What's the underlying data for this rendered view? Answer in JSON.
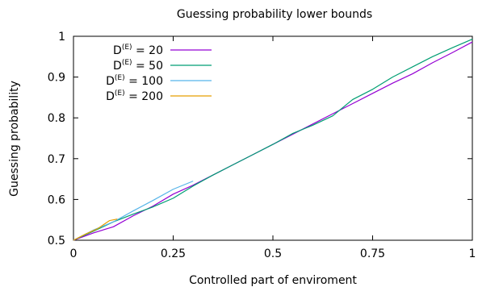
{
  "chart_data": {
    "type": "line",
    "title": "Guessing probability lower bounds",
    "xlabel": "Controlled part of enviroment",
    "ylabel": "Guessing probability",
    "xlim": [
      0,
      1
    ],
    "ylim": [
      0.5,
      1
    ],
    "xticks": [
      0,
      0.25,
      0.5,
      0.75,
      1
    ],
    "xtick_labels": [
      "0",
      "0.25",
      "0.5",
      "0.75",
      "1"
    ],
    "yticks": [
      0.5,
      0.6,
      0.7,
      0.8,
      0.9,
      1
    ],
    "ytick_labels": [
      "0.5",
      "0.6",
      "0.7",
      "0.8",
      "0.9",
      "1"
    ],
    "grid": false,
    "legend_position": "top-left",
    "series": [
      {
        "name": "D(E) = 20",
        "label_base": "D",
        "label_sup": "(E)",
        "label_rest": " = 20",
        "color": "#9400d3",
        "x": [
          0,
          0.05,
          0.1,
          0.15,
          0.2,
          0.25,
          0.3,
          0.35,
          0.4,
          0.45,
          0.5,
          0.55,
          0.6,
          0.65,
          0.7,
          0.75,
          0.8,
          0.85,
          0.9,
          0.95,
          1.0
        ],
        "y": [
          0.5,
          0.518,
          0.533,
          0.56,
          0.584,
          0.613,
          0.635,
          0.66,
          0.685,
          0.71,
          0.735,
          0.76,
          0.785,
          0.81,
          0.835,
          0.86,
          0.885,
          0.908,
          0.935,
          0.96,
          0.986
        ]
      },
      {
        "name": "D(E) = 50",
        "label_base": "D",
        "label_sup": "(E)",
        "label_rest": " = 50",
        "color": "#009e73",
        "x": [
          0,
          0.05,
          0.1,
          0.15,
          0.2,
          0.25,
          0.3,
          0.35,
          0.4,
          0.45,
          0.5,
          0.55,
          0.6,
          0.65,
          0.7,
          0.75,
          0.8,
          0.85,
          0.9,
          0.95,
          1.0
        ],
        "y": [
          0.5,
          0.522,
          0.545,
          0.564,
          0.582,
          0.603,
          0.633,
          0.66,
          0.685,
          0.71,
          0.735,
          0.762,
          0.782,
          0.805,
          0.845,
          0.87,
          0.9,
          0.925,
          0.95,
          0.972,
          0.993
        ]
      },
      {
        "name": "D(E) = 100",
        "label_base": "D",
        "label_sup": "(E)",
        "label_rest": " = 100",
        "color": "#56b4e9",
        "x": [
          0,
          0.05,
          0.1,
          0.15,
          0.2,
          0.25,
          0.3
        ],
        "y": [
          0.5,
          0.525,
          0.545,
          0.572,
          0.598,
          0.625,
          0.645
        ]
      },
      {
        "name": "D(E) = 200",
        "label_base": "D",
        "label_sup": "(E)",
        "label_rest": " = 200",
        "color": "#e69f00",
        "x": [
          0,
          0.03,
          0.06,
          0.09,
          0.11
        ],
        "y": [
          0.5,
          0.515,
          0.528,
          0.548,
          0.552
        ]
      }
    ]
  }
}
